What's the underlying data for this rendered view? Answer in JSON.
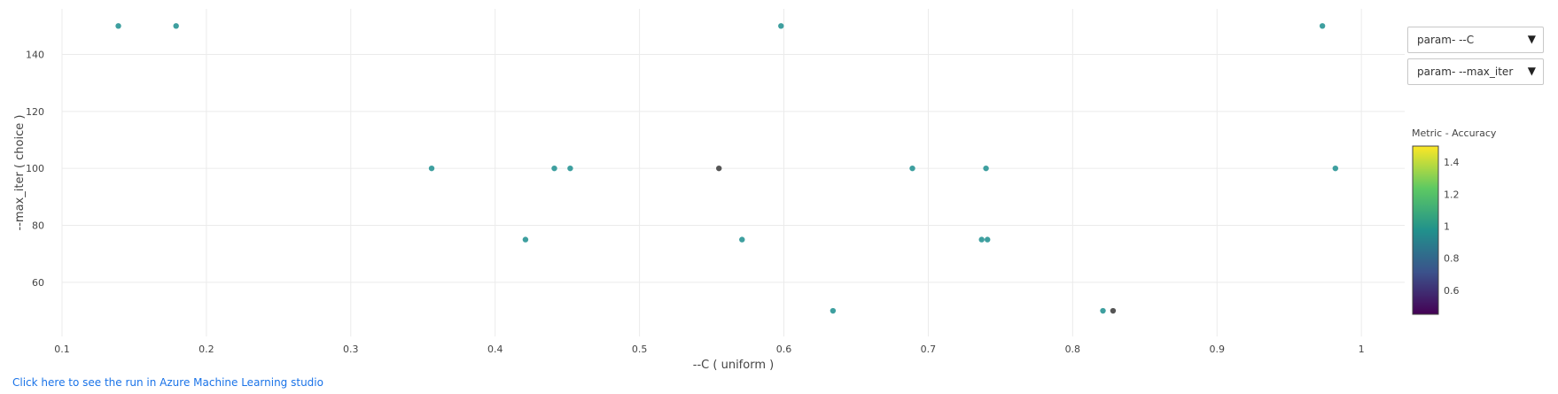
{
  "chart_data": {
    "type": "scatter",
    "xlabel": "--C ( uniform )",
    "ylabel": "--max_iter ( choice )",
    "xlim": [
      0.1,
      1.03
    ],
    "ylim": [
      41,
      156
    ],
    "x_ticks": [
      0.1,
      0.2,
      0.3,
      0.4,
      0.5,
      0.6,
      0.7,
      0.8,
      0.9,
      1
    ],
    "x_tick_labels": [
      "0.1",
      "0.2",
      "0.3",
      "0.4",
      "0.5",
      "0.6",
      "0.7",
      "0.8",
      "0.9",
      "1"
    ],
    "y_ticks": [
      60,
      80,
      100,
      120,
      140
    ],
    "y_tick_labels": [
      "60",
      "80",
      "100",
      "120",
      "140"
    ],
    "grid": true,
    "points": [
      {
        "x": 0.139,
        "y": 150,
        "color": "#3e9f9f"
      },
      {
        "x": 0.179,
        "y": 150,
        "color": "#3e9f9f"
      },
      {
        "x": 0.598,
        "y": 150,
        "color": "#3e9f9f"
      },
      {
        "x": 0.973,
        "y": 150,
        "color": "#3e9f9f"
      },
      {
        "x": 0.356,
        "y": 100,
        "color": "#3e9f9f"
      },
      {
        "x": 0.441,
        "y": 100,
        "color": "#3e9f9f"
      },
      {
        "x": 0.452,
        "y": 100,
        "color": "#3e9f9f"
      },
      {
        "x": 0.555,
        "y": 100,
        "color": "#555555"
      },
      {
        "x": 0.689,
        "y": 100,
        "color": "#3e9f9f"
      },
      {
        "x": 0.74,
        "y": 100,
        "color": "#3e9f9f"
      },
      {
        "x": 0.982,
        "y": 100,
        "color": "#3e9f9f"
      },
      {
        "x": 0.421,
        "y": 75,
        "color": "#3e9f9f"
      },
      {
        "x": 0.571,
        "y": 75,
        "color": "#3e9f9f"
      },
      {
        "x": 0.737,
        "y": 75,
        "color": "#3e9f9f"
      },
      {
        "x": 0.741,
        "y": 75,
        "color": "#3e9f9f"
      },
      {
        "x": 0.634,
        "y": 50,
        "color": "#3e9f9f"
      },
      {
        "x": 0.821,
        "y": 50,
        "color": "#3e9f9f"
      },
      {
        "x": 0.828,
        "y": 50,
        "color": "#555555"
      }
    ],
    "colorbar": {
      "title": "Metric - Accuracy",
      "range": [
        0.45,
        1.5
      ],
      "ticks": [
        0.6,
        0.8,
        1,
        1.2,
        1.4
      ],
      "tick_labels": [
        "0.6",
        "0.8",
        "1",
        "1.2",
        "1.4"
      ],
      "colorscale": [
        "#440154",
        "#3b528b",
        "#21918c",
        "#5ec962",
        "#fde725"
      ]
    }
  },
  "controls": {
    "x_param_select": "param- --C",
    "y_param_select": "param- --max_iter",
    "dropdown_arrow": "▼"
  },
  "link": {
    "text": "Click here to see the run in Azure Machine Learning studio"
  }
}
